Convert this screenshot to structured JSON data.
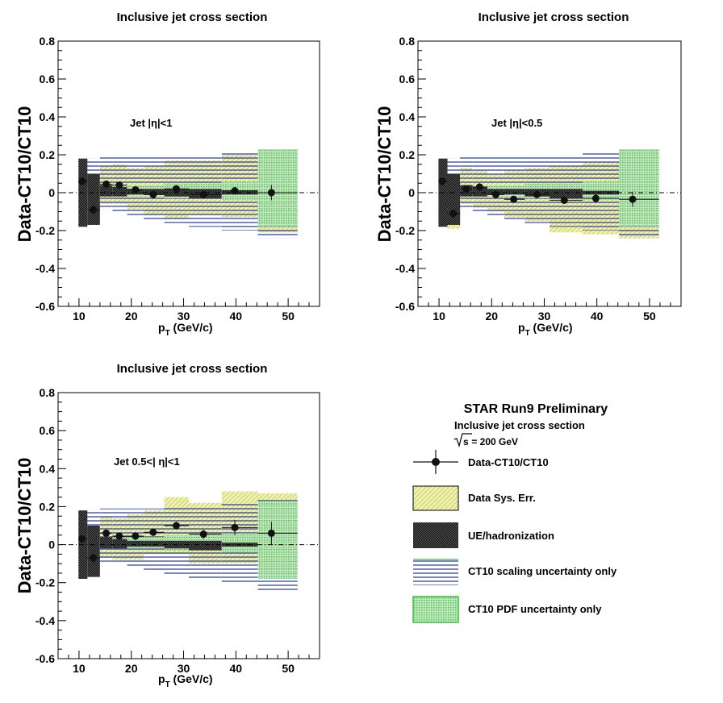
{
  "colors": {
    "data_sys": "#d8dc6e",
    "ue": "#222222",
    "scaling": "#2233aa",
    "pdf": "#3fbf3f",
    "points": "#111111"
  },
  "legend": {
    "title": "STAR Run9 Preliminary",
    "subtitle": "Inclusive jet cross section",
    "energy_sqrt": "s",
    "energy_rest": " = 200 GeV",
    "entries": [
      {
        "key": "points",
        "label": "Data-CT10/CT10"
      },
      {
        "key": "data_sys",
        "label": "Data Sys. Err."
      },
      {
        "key": "ue",
        "label": "UE/hadronization"
      },
      {
        "key": "scaling",
        "label": "CT10 scaling uncertainty only"
      },
      {
        "key": "pdf",
        "label": "CT10 PDF uncertainty only"
      }
    ]
  },
  "chart_data": [
    {
      "type": "scatter",
      "title": "Inclusive jet cross section",
      "annotation": "Jet |η|<1",
      "ylabel": "Data-CT10/CT10",
      "xlabel_main": "p",
      "xlabel_sub": "T",
      "xlabel_unit": " (GeV/c)",
      "xlim": [
        6,
        56
      ],
      "ylim": [
        -0.6,
        0.8
      ],
      "xticks": [
        10,
        20,
        30,
        40,
        50
      ],
      "yticks": [
        -0.6,
        -0.4,
        -0.2,
        0,
        0.2,
        0.4,
        0.6,
        0.8
      ],
      "ytick_labels": [
        "-0.6",
        "-0.4",
        "-0.2",
        "0",
        "0.2",
        "0.4",
        "0.6",
        "0.8"
      ],
      "bins": [
        {
          "x": 10.6,
          "xlo": 9.9,
          "xhi": 11.6,
          "y": 0.06,
          "err": 0.02,
          "sys": [
            0.03,
            0.08
          ],
          "ue": [
            -0.18,
            0.18
          ],
          "scl": [
            -0.08,
            0.18
          ],
          "pdf": [
            -0.02,
            0.04
          ]
        },
        {
          "x": 12.7,
          "xlo": 11.6,
          "xhi": 14.0,
          "y": -0.09,
          "err": 0.025,
          "sys": [
            -0.13,
            0.04
          ],
          "ue": [
            -0.17,
            0.1
          ],
          "scl": [
            -0.08,
            0.18
          ],
          "pdf": [
            -0.02,
            0.04
          ]
        },
        {
          "x": 15.2,
          "xlo": 14.0,
          "xhi": 16.4,
          "y": 0.045,
          "err": 0.02,
          "sys": [
            -0.06,
            0.14
          ],
          "ue": [
            -0.02,
            0.04
          ],
          "scl": [
            -0.09,
            0.19
          ],
          "pdf": [
            -0.02,
            0.04
          ]
        },
        {
          "x": 17.7,
          "xlo": 16.4,
          "xhi": 19.2,
          "y": 0.04,
          "err": 0.02,
          "sys": [
            -0.06,
            0.15
          ],
          "ue": [
            -0.02,
            0.03
          ],
          "scl": [
            -0.1,
            0.19
          ],
          "pdf": [
            -0.02,
            0.04
          ]
        },
        {
          "x": 20.8,
          "xlo": 19.2,
          "xhi": 22.4,
          "y": 0.015,
          "err": 0.015,
          "sys": [
            -0.09,
            0.13
          ],
          "ue": [
            -0.01,
            0.02
          ],
          "scl": [
            -0.12,
            0.19
          ],
          "pdf": [
            -0.02,
            0.04
          ]
        },
        {
          "x": 24.2,
          "xlo": 22.4,
          "xhi": 26.3,
          "y": -0.01,
          "err": 0.015,
          "sys": [
            -0.12,
            0.14
          ],
          "ue": [
            -0.01,
            0.02
          ],
          "scl": [
            -0.14,
            0.19
          ],
          "pdf": [
            -0.02,
            0.04
          ]
        },
        {
          "x": 28.6,
          "xlo": 26.3,
          "xhi": 31.0,
          "y": 0.02,
          "err": 0.02,
          "sys": [
            -0.14,
            0.17
          ],
          "ue": [
            -0.02,
            0.02
          ],
          "scl": [
            -0.16,
            0.2
          ],
          "pdf": [
            -0.03,
            0.05
          ]
        },
        {
          "x": 33.8,
          "xlo": 31.0,
          "xhi": 37.3,
          "y": -0.01,
          "err": 0.02,
          "sys": [
            -0.12,
            0.17
          ],
          "ue": [
            -0.03,
            0.02
          ],
          "scl": [
            -0.18,
            0.2
          ],
          "pdf": [
            -0.03,
            0.05
          ]
        },
        {
          "x": 39.8,
          "xlo": 37.3,
          "xhi": 44.2,
          "y": 0.01,
          "err": 0.02,
          "sys": [
            -0.13,
            0.2
          ],
          "ue": [
            -0.01,
            0.01
          ],
          "scl": [
            -0.2,
            0.22
          ],
          "pdf": [
            -0.04,
            0.06
          ]
        },
        {
          "x": 46.8,
          "xlo": 44.2,
          "xhi": 51.8,
          "y": 0.0,
          "err": 0.04,
          "sys": [
            -0.21,
            0.22
          ],
          "ue": [
            0,
            0
          ],
          "scl": [
            -0.24,
            0.24
          ],
          "pdf": [
            -0.18,
            0.23
          ]
        }
      ]
    },
    {
      "type": "scatter",
      "title": "Inclusive jet cross section",
      "annotation": "Jet |η|<0.5",
      "ylabel": "Data-CT10/CT10",
      "xlabel_main": "p",
      "xlabel_sub": "T",
      "xlabel_unit": " (GeV/c)",
      "xlim": [
        6,
        56
      ],
      "ylim": [
        -0.6,
        0.8
      ],
      "xticks": [
        10,
        20,
        30,
        40,
        50
      ],
      "yticks": [
        -0.6,
        -0.4,
        -0.2,
        0,
        0.2,
        0.4,
        0.6,
        0.8
      ],
      "ytick_labels": [
        "-0.6",
        "-0.4",
        "-0.2",
        "0",
        "0.2",
        "0.4",
        "0.6",
        "0.8"
      ],
      "bins": [
        {
          "x": 10.6,
          "xlo": 9.9,
          "xhi": 11.6,
          "y": 0.06,
          "err": 0.02,
          "sys": [
            0.03,
            0.08
          ],
          "ue": [
            -0.18,
            0.18
          ],
          "scl": [
            -0.08,
            0.18
          ],
          "pdf": [
            -0.02,
            0.04
          ]
        },
        {
          "x": 12.7,
          "xlo": 11.6,
          "xhi": 14.0,
          "y": -0.11,
          "err": 0.025,
          "sys": [
            -0.19,
            0.09
          ],
          "ue": [
            -0.17,
            0.1
          ],
          "scl": [
            -0.08,
            0.18
          ],
          "pdf": [
            -0.02,
            0.04
          ]
        },
        {
          "x": 15.2,
          "xlo": 14.0,
          "xhi": 16.4,
          "y": 0.02,
          "err": 0.02,
          "sys": [
            -0.06,
            0.13
          ],
          "ue": [
            -0.02,
            0.04
          ],
          "scl": [
            -0.09,
            0.19
          ],
          "pdf": [
            -0.02,
            0.04
          ]
        },
        {
          "x": 17.7,
          "xlo": 16.4,
          "xhi": 19.2,
          "y": 0.03,
          "err": 0.02,
          "sys": [
            -0.08,
            0.12
          ],
          "ue": [
            -0.02,
            0.03
          ],
          "scl": [
            -0.1,
            0.19
          ],
          "pdf": [
            -0.02,
            0.04
          ]
        },
        {
          "x": 20.8,
          "xlo": 19.2,
          "xhi": 22.4,
          "y": -0.01,
          "err": 0.015,
          "sys": [
            -0.1,
            0.1
          ],
          "ue": [
            -0.01,
            0.02
          ],
          "scl": [
            -0.12,
            0.19
          ],
          "pdf": [
            -0.02,
            0.04
          ]
        },
        {
          "x": 24.2,
          "xlo": 22.4,
          "xhi": 26.3,
          "y": -0.035,
          "err": 0.015,
          "sys": [
            -0.13,
            0.12
          ],
          "ue": [
            -0.01,
            0.02
          ],
          "scl": [
            -0.14,
            0.19
          ],
          "pdf": [
            -0.02,
            0.04
          ]
        },
        {
          "x": 28.6,
          "xlo": 26.3,
          "xhi": 31.0,
          "y": -0.01,
          "err": 0.015,
          "sys": [
            -0.15,
            0.13
          ],
          "ue": [
            -0.02,
            0.02
          ],
          "scl": [
            -0.16,
            0.2
          ],
          "pdf": [
            -0.03,
            0.05
          ]
        },
        {
          "x": 33.8,
          "xlo": 31.0,
          "xhi": 37.3,
          "y": -0.04,
          "err": 0.02,
          "sys": [
            -0.21,
            0.14
          ],
          "ue": [
            -0.03,
            0.02
          ],
          "scl": [
            -0.18,
            0.2
          ],
          "pdf": [
            -0.03,
            0.05
          ]
        },
        {
          "x": 39.8,
          "xlo": 37.3,
          "xhi": 44.2,
          "y": -0.03,
          "err": 0.02,
          "sys": [
            -0.22,
            0.16
          ],
          "ue": [
            -0.01,
            0.01
          ],
          "scl": [
            -0.2,
            0.22
          ],
          "pdf": [
            -0.04,
            0.06
          ]
        },
        {
          "x": 46.8,
          "xlo": 44.2,
          "xhi": 51.8,
          "y": -0.035,
          "err": 0.04,
          "sys": [
            -0.24,
            0.22
          ],
          "ue": [
            0,
            0
          ],
          "scl": [
            -0.24,
            0.24
          ],
          "pdf": [
            -0.18,
            0.23
          ]
        }
      ]
    },
    {
      "type": "scatter",
      "title": "Inclusive jet cross section",
      "annotation": "Jet 0.5<| η|<1",
      "ylabel": "Data-CT10/CT10",
      "xlabel_main": "p",
      "xlabel_sub": "T",
      "xlabel_unit": " (GeV/c)",
      "xlim": [
        6,
        56
      ],
      "ylim": [
        -0.6,
        0.8
      ],
      "xticks": [
        10,
        20,
        30,
        40,
        50
      ],
      "yticks": [
        -0.6,
        -0.4,
        -0.2,
        0,
        0.2,
        0.4,
        0.6,
        0.8
      ],
      "ytick_labels": [
        "-0.6",
        "-0.4",
        "-0.2",
        "0",
        "0.2",
        "0.4",
        "0.6",
        "0.8"
      ],
      "bins": [
        {
          "x": 10.6,
          "xlo": 9.9,
          "xhi": 11.6,
          "y": 0.03,
          "err": 0.02,
          "sys": [
            0.0,
            0.07
          ],
          "ue": [
            -0.18,
            0.18
          ],
          "scl": [
            -0.08,
            0.18
          ],
          "pdf": [
            -0.02,
            0.04
          ]
        },
        {
          "x": 12.7,
          "xlo": 11.6,
          "xhi": 14.0,
          "y": -0.07,
          "err": 0.025,
          "sys": [
            -0.15,
            0.06
          ],
          "ue": [
            -0.17,
            0.1
          ],
          "scl": [
            -0.08,
            0.18
          ],
          "pdf": [
            -0.02,
            0.04
          ]
        },
        {
          "x": 15.2,
          "xlo": 14.0,
          "xhi": 16.4,
          "y": 0.06,
          "err": 0.02,
          "sys": [
            -0.07,
            0.15
          ],
          "ue": [
            -0.02,
            0.04
          ],
          "scl": [
            -0.09,
            0.19
          ],
          "pdf": [
            -0.02,
            0.04
          ]
        },
        {
          "x": 17.7,
          "xlo": 16.4,
          "xhi": 19.2,
          "y": 0.045,
          "err": 0.02,
          "sys": [
            -0.08,
            0.14
          ],
          "ue": [
            -0.02,
            0.03
          ],
          "scl": [
            -0.1,
            0.19
          ],
          "pdf": [
            -0.02,
            0.04
          ]
        },
        {
          "x": 20.8,
          "xlo": 19.2,
          "xhi": 22.4,
          "y": 0.045,
          "err": 0.02,
          "sys": [
            -0.08,
            0.16
          ],
          "ue": [
            -0.01,
            0.02
          ],
          "scl": [
            -0.12,
            0.19
          ],
          "pdf": [
            -0.02,
            0.04
          ]
        },
        {
          "x": 24.2,
          "xlo": 22.4,
          "xhi": 26.3,
          "y": 0.065,
          "err": 0.02,
          "sys": [
            -0.05,
            0.18
          ],
          "ue": [
            -0.01,
            0.02
          ],
          "scl": [
            -0.14,
            0.19
          ],
          "pdf": [
            -0.02,
            0.04
          ]
        },
        {
          "x": 28.6,
          "xlo": 26.3,
          "xhi": 31.0,
          "y": 0.1,
          "err": 0.02,
          "sys": [
            -0.05,
            0.25
          ],
          "ue": [
            -0.02,
            0.02
          ],
          "scl": [
            -0.16,
            0.2
          ],
          "pdf": [
            -0.03,
            0.05
          ]
        },
        {
          "x": 33.8,
          "xlo": 31.0,
          "xhi": 37.3,
          "y": 0.055,
          "err": 0.025,
          "sys": [
            -0.1,
            0.22
          ],
          "ue": [
            -0.03,
            0.02
          ],
          "scl": [
            -0.18,
            0.2
          ],
          "pdf": [
            -0.03,
            0.05
          ]
        },
        {
          "x": 39.8,
          "xlo": 37.3,
          "xhi": 44.2,
          "y": 0.09,
          "err": 0.04,
          "sys": [
            -0.1,
            0.28
          ],
          "ue": [
            -0.01,
            0.01
          ],
          "scl": [
            -0.2,
            0.22
          ],
          "pdf": [
            -0.04,
            0.06
          ]
        },
        {
          "x": 46.8,
          "xlo": 44.2,
          "xhi": 51.8,
          "y": 0.06,
          "err": 0.06,
          "sys": [
            -0.15,
            0.27
          ],
          "ue": [
            0,
            0
          ],
          "scl": [
            -0.24,
            0.24
          ],
          "pdf": [
            -0.18,
            0.23
          ]
        }
      ]
    }
  ]
}
